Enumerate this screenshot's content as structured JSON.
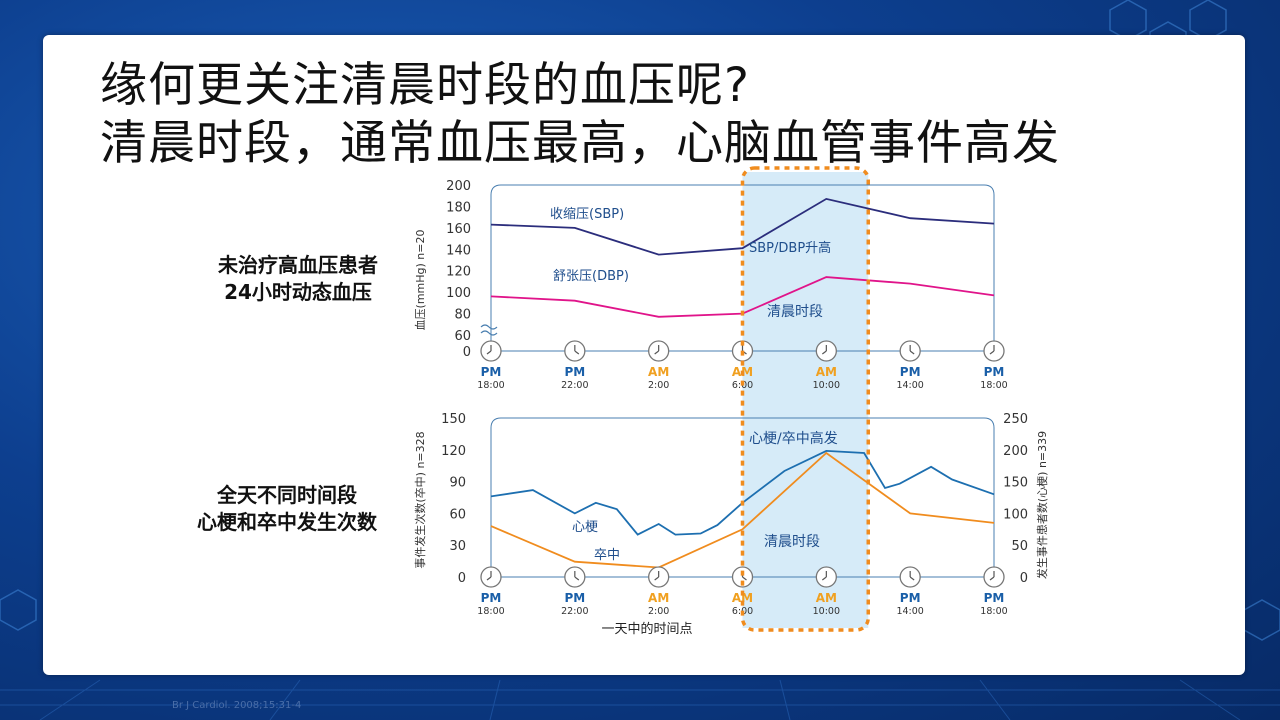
{
  "slide": {
    "title_line1": "缘何更关注清晨时段的血压呢?",
    "title_line2": "清晨时段，通常血压最高，心脑血管事件高发",
    "label_top": [
      "未治疗高血压患者",
      "24小时动态血压"
    ],
    "label_bottom": [
      "全天不同时间段",
      "心梗和卒中发生次数"
    ],
    "citation": "Br J Cardiol. 2008;15:31-4"
  },
  "colors": {
    "sbp": "#2b2d7c",
    "dbp": "#e0148a",
    "mi": "#1d6fb0",
    "stroke": "#f08c1e",
    "highlight_fill": "#d6ebf8",
    "highlight_border": "#f08c1e",
    "pm": "#1a5fa8",
    "am": "#f0a020",
    "text": "#1f4e8c"
  },
  "chart_data": [
    {
      "type": "line",
      "ylabel": "血压(mmHg) n=20",
      "yticks": [
        0,
        60,
        80,
        100,
        120,
        140,
        160,
        180,
        200
      ],
      "ylim": [
        60,
        200
      ],
      "axis_break": true,
      "x_labels": [
        {
          "ampm": "PM",
          "time": "18:00"
        },
        {
          "ampm": "PM",
          "time": "22:00"
        },
        {
          "ampm": "AM",
          "time": "2:00"
        },
        {
          "ampm": "AM",
          "time": "6:00"
        },
        {
          "ampm": "AM",
          "time": "10:00"
        },
        {
          "ampm": "PM",
          "time": "14:00"
        },
        {
          "ampm": "PM",
          "time": "18:00"
        }
      ],
      "x": [
        18,
        22,
        26,
        30,
        34,
        38,
        42
      ],
      "series": [
        {
          "name": "收缩压(SBP)",
          "color": "#2b2d7c",
          "values": [
            163,
            160,
            135,
            141,
            187,
            169,
            164
          ]
        },
        {
          "name": "舒张压(DBP)",
          "color": "#e0148a",
          "values": [
            96,
            92,
            77,
            80,
            114,
            108,
            97
          ]
        }
      ],
      "annotations": [
        "SBP/DBP升高",
        "清晨时段"
      ],
      "highlight": {
        "from": 30,
        "to": 36
      }
    },
    {
      "type": "line",
      "ylabel_left": "事件发生次数(卒中) n=328",
      "ylabel_right": "发生事件患者数(心梗) n=339",
      "xlabel": "一天中的时间点",
      "yticks_left": [
        0,
        30,
        60,
        90,
        120,
        150
      ],
      "ylim_left": [
        0,
        150
      ],
      "yticks_right": [
        0,
        50,
        100,
        150,
        200,
        250
      ],
      "ylim_right": [
        0,
        250
      ],
      "x_labels": [
        {
          "ampm": "PM",
          "time": "18:00"
        },
        {
          "ampm": "PM",
          "time": "22:00"
        },
        {
          "ampm": "AM",
          "time": "2:00"
        },
        {
          "ampm": "AM",
          "time": "6:00"
        },
        {
          "ampm": "AM",
          "time": "10:00"
        },
        {
          "ampm": "PM",
          "time": "14:00"
        },
        {
          "ampm": "PM",
          "time": "18:00"
        }
      ],
      "series": [
        {
          "name": "心梗",
          "axis": "left",
          "color": "#1d6fb0",
          "x": [
            18,
            20,
            22,
            23,
            24,
            25,
            26,
            26.8,
            28,
            28.8,
            30,
            32,
            34,
            35.8,
            36.8,
            37.5,
            39,
            40,
            42
          ],
          "values": [
            76,
            82,
            60,
            70,
            64,
            40,
            50,
            40,
            41,
            49,
            70,
            100,
            119,
            117,
            84,
            88,
            104,
            92,
            78
          ]
        },
        {
          "name": "卒中",
          "axis": "right",
          "color": "#f08c1e",
          "x": [
            18,
            22,
            26,
            30,
            34,
            38,
            42
          ],
          "values": [
            80,
            24,
            15,
            75,
            195,
            100,
            85
          ]
        }
      ],
      "annotations": [
        "心梗/卒中高发",
        "清晨时段"
      ],
      "highlight": {
        "from": 30,
        "to": 36
      }
    }
  ]
}
